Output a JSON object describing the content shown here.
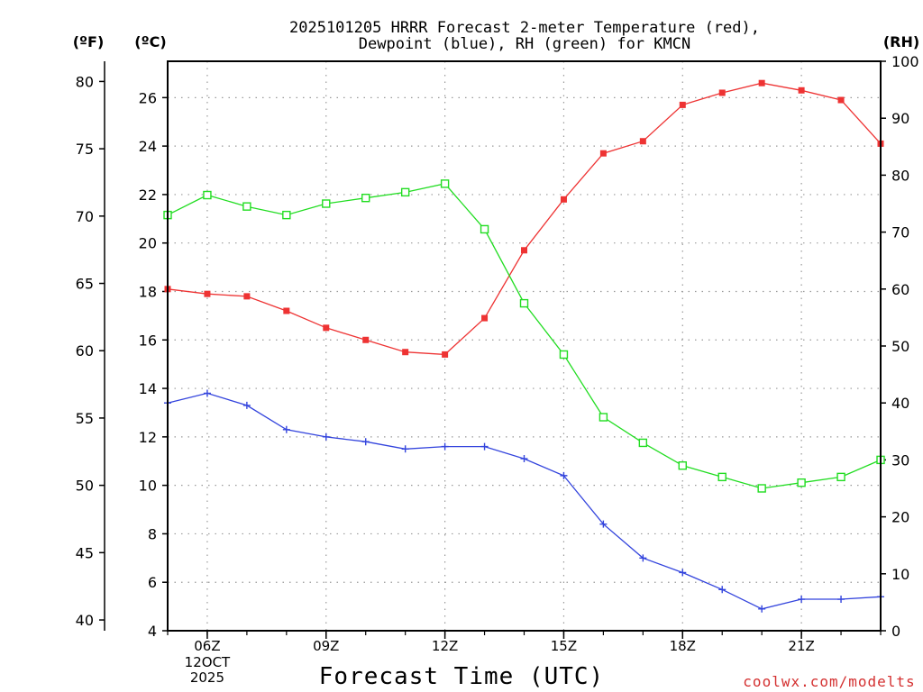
{
  "colors": {
    "temperature": "#ee3333",
    "dewpoint": "#3344dd",
    "rh": "#22dd22",
    "grid": "#999999",
    "axis": "#000000",
    "credit": "#d43030"
  },
  "credit": "coolwx.com/modelts",
  "chart_data": {
    "type": "line",
    "title": [
      "2025101205 HRRR Forecast 2-meter Temperature (red),",
      "Dewpoint (blue), RH (green) for KMCN"
    ],
    "xlabel": "Forecast Time (UTC)",
    "x": [
      5,
      6,
      7,
      8,
      9,
      10,
      11,
      12,
      13,
      14,
      15,
      16,
      17,
      18,
      19,
      20,
      21,
      22,
      23
    ],
    "xlim": [
      5,
      23
    ],
    "x_ticks": [
      {
        "x": 6,
        "label": "06Z",
        "sub": [
          "12OCT",
          "2025"
        ]
      },
      {
        "x": 9,
        "label": "09Z",
        "sub": []
      },
      {
        "x": 12,
        "label": "12Z",
        "sub": []
      },
      {
        "x": 15,
        "label": "15Z",
        "sub": []
      },
      {
        "x": 18,
        "label": "18Z",
        "sub": []
      },
      {
        "x": 21,
        "label": "21Z",
        "sub": []
      }
    ],
    "y_left_c": {
      "unit": "(ºC)",
      "lim": [
        4,
        27.5
      ],
      "ticks": [
        4,
        6,
        8,
        10,
        12,
        14,
        16,
        18,
        20,
        22,
        24,
        26
      ]
    },
    "y_left_f": {
      "unit": "(ºF)",
      "lim": [
        39.2,
        81.5
      ],
      "ticks": [
        40,
        45,
        50,
        55,
        60,
        65,
        70,
        75,
        80
      ]
    },
    "y_right_rh": {
      "unit": "(RH)",
      "lim": [
        0,
        100
      ],
      "ticks": [
        0,
        10,
        20,
        30,
        40,
        50,
        60,
        70,
        80,
        90,
        100
      ]
    },
    "series": [
      {
        "name": "Temperature",
        "axis": "c",
        "marker": "filled-square",
        "values": [
          18.1,
          17.9,
          17.8,
          17.2,
          16.5,
          16.0,
          15.5,
          15.4,
          16.9,
          19.7,
          21.8,
          23.7,
          24.2,
          25.7,
          26.2,
          26.6,
          26.3,
          25.9,
          24.1
        ]
      },
      {
        "name": "Dewpoint",
        "axis": "c",
        "marker": "plus",
        "values": [
          13.4,
          13.8,
          13.3,
          12.3,
          12.0,
          11.8,
          11.5,
          11.6,
          11.6,
          11.1,
          10.4,
          8.4,
          7.0,
          6.4,
          5.7,
          4.9,
          5.3,
          5.3,
          5.4
        ]
      },
      {
        "name": "RH",
        "axis": "rh",
        "marker": "open-square",
        "values": [
          73,
          76.5,
          74.5,
          73,
          75,
          76,
          77,
          78.5,
          70.5,
          57.5,
          48.5,
          37.5,
          33,
          29,
          27,
          25,
          26,
          27,
          30
        ]
      }
    ]
  }
}
